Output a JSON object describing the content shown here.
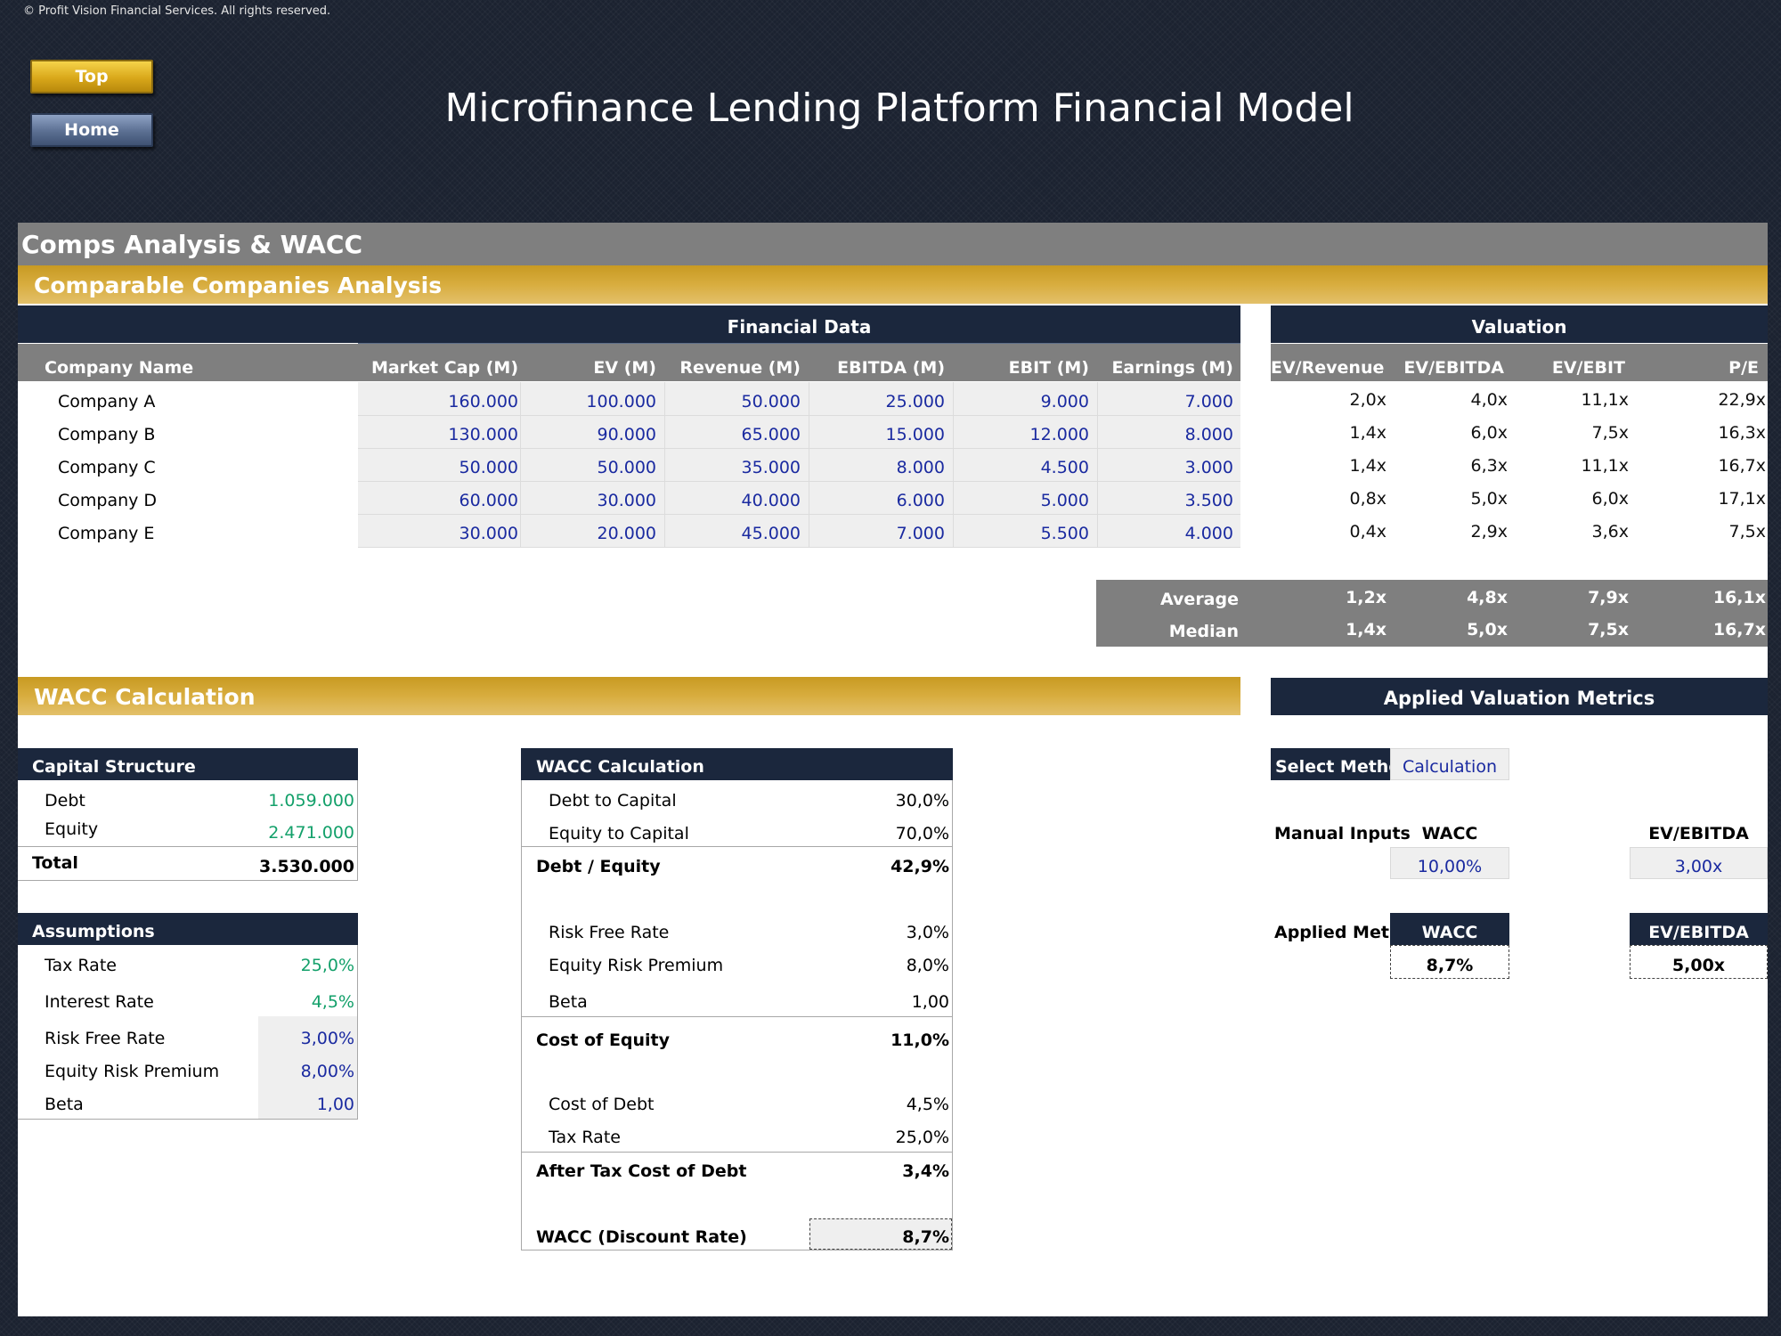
{
  "copyright": "© Profit Vision Financial Services. All rights reserved.",
  "nav": {
    "top": "Top",
    "home": "Home"
  },
  "title": "Microfinance Lending Platform Financial Model",
  "section_title": "Comps Analysis & WACC",
  "comps": {
    "title": "Comparable Companies Analysis",
    "financial_data_header": "Financial Data",
    "valuation_header": "Valuation",
    "columns": [
      "Company Name",
      "Market Cap (M)",
      "EV (M)",
      "Revenue (M)",
      "EBITDA (M)",
      "EBIT (M)",
      "Earnings (M)"
    ],
    "val_columns": [
      "EV/Revenue",
      "EV/EBITDA",
      "EV/EBIT",
      "P/E"
    ],
    "rows": [
      {
        "name": "Company A",
        "data": [
          "160.000",
          "100.000",
          "50.000",
          "25.000",
          "9.000",
          "7.000"
        ],
        "val": [
          "2,0x",
          "4,0x",
          "11,1x",
          "22,9x"
        ]
      },
      {
        "name": "Company B",
        "data": [
          "130.000",
          "90.000",
          "65.000",
          "15.000",
          "12.000",
          "8.000"
        ],
        "val": [
          "1,4x",
          "6,0x",
          "7,5x",
          "16,3x"
        ]
      },
      {
        "name": "Company C",
        "data": [
          "50.000",
          "50.000",
          "35.000",
          "8.000",
          "4.500",
          "3.000"
        ],
        "val": [
          "1,4x",
          "6,3x",
          "11,1x",
          "16,7x"
        ]
      },
      {
        "name": "Company D",
        "data": [
          "60.000",
          "30.000",
          "40.000",
          "6.000",
          "5.000",
          "3.500"
        ],
        "val": [
          "0,8x",
          "5,0x",
          "6,0x",
          "17,1x"
        ]
      },
      {
        "name": "Company E",
        "data": [
          "30.000",
          "20.000",
          "45.000",
          "7.000",
          "5.500",
          "4.000"
        ],
        "val": [
          "0,4x",
          "2,9x",
          "3,6x",
          "7,5x"
        ]
      }
    ],
    "average": {
      "label": "Average",
      "val": [
        "1,2x",
        "4,8x",
        "7,9x",
        "16,1x"
      ]
    },
    "median": {
      "label": "Median",
      "val": [
        "1,4x",
        "5,0x",
        "7,5x",
        "16,7x"
      ]
    }
  },
  "wacc_section_title": "WACC Calculation",
  "capital_structure": {
    "title": "Capital Structure",
    "debt_label": "Debt",
    "debt": "1.059.000",
    "equity_label": "Equity",
    "equity": "2.471.000",
    "total_label": "Total",
    "total": "3.530.000"
  },
  "assumptions": {
    "title": "Assumptions",
    "items": [
      {
        "label": "Tax Rate",
        "value": "25,0%"
      },
      {
        "label": "Interest Rate",
        "value": "4,5%"
      },
      {
        "label": "Risk Free Rate",
        "value": "3,00%"
      },
      {
        "label": "Equity Risk Premium",
        "value": "8,00%"
      },
      {
        "label": "Beta",
        "value": "1,00"
      }
    ]
  },
  "wacc_calc": {
    "title": "WACC Calculation",
    "debt_to_capital": {
      "label": "Debt to Capital",
      "value": "30,0%"
    },
    "equity_to_capital": {
      "label": "Equity to Capital",
      "value": "70,0%"
    },
    "debt_equity": {
      "label": "Debt / Equity",
      "value": "42,9%"
    },
    "risk_free": {
      "label": "Risk Free Rate",
      "value": "3,0%"
    },
    "erp": {
      "label": "Equity Risk Premium",
      "value": "8,0%"
    },
    "beta": {
      "label": "Beta",
      "value": "1,00"
    },
    "cost_of_equity": {
      "label": "Cost of Equity",
      "value": "11,0%"
    },
    "cost_of_debt": {
      "label": "Cost of Debt",
      "value": "4,5%"
    },
    "tax_rate": {
      "label": "Tax Rate",
      "value": "25,0%"
    },
    "after_tax_cod": {
      "label": "After Tax Cost of Debt",
      "value": "3,4%"
    },
    "wacc": {
      "label": "WACC (Discount Rate)",
      "value": "8,7%"
    }
  },
  "applied": {
    "title": "Applied Valuation Metrics",
    "select_method_label": "Select Method",
    "select_method_value": "Calculation",
    "manual_inputs_label": "Manual Inputs",
    "wacc_header": "WACC",
    "ev_ebitda_header": "EV/EBITDA",
    "manual_wacc": "10,00%",
    "manual_ev_ebitda": "3,00x",
    "applied_metrics_label": "Applied Metrics",
    "applied_wacc": "8,7%",
    "applied_ev_ebitda": "5,00x"
  }
}
